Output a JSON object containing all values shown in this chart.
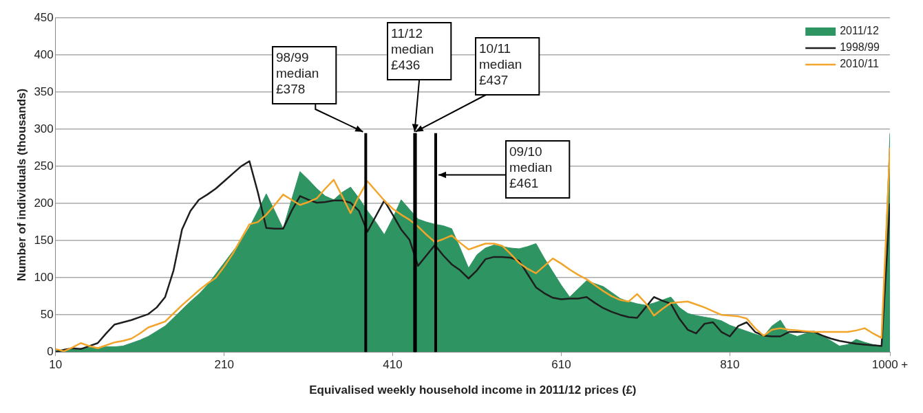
{
  "chart_data": {
    "type": "area",
    "xlabel": "Equivalised weekly household income in 2011/12 prices (£)",
    "ylabel": "Number of individuals (thousands)",
    "x": [
      10,
      20,
      30,
      40,
      50,
      60,
      70,
      80,
      90,
      100,
      110,
      120,
      130,
      140,
      150,
      160,
      170,
      180,
      190,
      200,
      210,
      220,
      230,
      240,
      250,
      260,
      270,
      280,
      290,
      300,
      310,
      320,
      330,
      340,
      350,
      360,
      370,
      380,
      390,
      400,
      410,
      420,
      430,
      440,
      450,
      460,
      470,
      480,
      490,
      500,
      510,
      520,
      530,
      540,
      550,
      560,
      570,
      580,
      590,
      600,
      610,
      620,
      630,
      640,
      650,
      660,
      670,
      680,
      690,
      700,
      710,
      720,
      730,
      740,
      750,
      760,
      770,
      780,
      790,
      800,
      810,
      820,
      830,
      840,
      850,
      860,
      870,
      880,
      890,
      900,
      910,
      920,
      930,
      940,
      950,
      960,
      970,
      980,
      990,
      1000
    ],
    "series": [
      {
        "name": "2011/12",
        "color": "#2e9462",
        "values": [
          2,
          3,
          4,
          5,
          6,
          6,
          7,
          7,
          8,
          12,
          16,
          21,
          28,
          35,
          46,
          57,
          68,
          78,
          90,
          105,
          120,
          135,
          150,
          168,
          190,
          213,
          190,
          166,
          205,
          243,
          232,
          220,
          210,
          205,
          215,
          222,
          207,
          190,
          175,
          158,
          180,
          205,
          192,
          179,
          175,
          172,
          170,
          166,
          140,
          113,
          131,
          140,
          144,
          142,
          140,
          139,
          142,
          146,
          126,
          108,
          90,
          74,
          85,
          96,
          92,
          88,
          80,
          72,
          68,
          65,
          63,
          66,
          70,
          74,
          60,
          52,
          49,
          47,
          45,
          42,
          36,
          32,
          28,
          24,
          21,
          35,
          43,
          25,
          21,
          25,
          28,
          22,
          15,
          8,
          10,
          17,
          13,
          10,
          8,
          295
        ]
      },
      {
        "name": "1998/99",
        "type": "line",
        "color": "#1e1e1e",
        "values": [
          0,
          3,
          5,
          4,
          8,
          12,
          25,
          37,
          40,
          43,
          47,
          51,
          60,
          74,
          110,
          165,
          190,
          205,
          212,
          220,
          230,
          240,
          250,
          257,
          215,
          167,
          166,
          166,
          190,
          210,
          205,
          201,
          202,
          204,
          204,
          201,
          190,
          162,
          183,
          204,
          185,
          165,
          151,
          116,
          130,
          144,
          130,
          118,
          110,
          99,
          110,
          125,
          128,
          128,
          127,
          123,
          105,
          87,
          79,
          73,
          71,
          72,
          72,
          74,
          66,
          59,
          54,
          50,
          47,
          46,
          60,
          74,
          69,
          65,
          45,
          30,
          25,
          38,
          40,
          27,
          21,
          35,
          40,
          27,
          22,
          21,
          21,
          27,
          27,
          27,
          27,
          22,
          18,
          15,
          13,
          11,
          10,
          9,
          8,
          200
        ]
      },
      {
        "name": "2010/11",
        "type": "line",
        "color": "#f2a52a",
        "values": [
          4,
          1,
          6,
          12,
          8,
          5,
          9,
          13,
          15,
          18,
          25,
          33,
          37,
          41,
          52,
          63,
          73,
          83,
          92,
          100,
          115,
          132,
          152,
          172,
          175,
          185,
          198,
          212,
          205,
          198,
          202,
          207,
          220,
          232,
          210,
          187,
          210,
          230,
          217,
          204,
          193,
          185,
          178,
          169,
          158,
          148,
          152,
          157,
          147,
          138,
          142,
          146,
          146,
          143,
          132,
          120,
          112,
          106,
          116,
          126,
          119,
          111,
          104,
          98,
          90,
          82,
          75,
          70,
          68,
          78,
          66,
          49,
          58,
          66,
          67,
          68,
          64,
          60,
          55,
          50,
          49,
          48,
          45,
          32,
          22,
          30,
          32,
          30,
          29,
          28,
          27,
          27,
          27,
          27,
          27,
          29,
          32,
          25,
          19,
          275
        ]
      }
    ],
    "xlim": [
      10,
      1000
    ],
    "xticks": [
      10,
      210,
      410,
      610,
      810,
      {
        "value": 1000,
        "label": "1000 +"
      }
    ],
    "ylim": [
      0,
      450
    ],
    "yticks": [
      0,
      50,
      100,
      150,
      200,
      250,
      300,
      350,
      400,
      450
    ],
    "ref_lines": [
      {
        "axis": "x",
        "value": 378,
        "label": "98/99 median £378",
        "color": "#000000"
      },
      {
        "axis": "x",
        "value": 436,
        "label": "11/12 median £436",
        "color": "#000000"
      },
      {
        "axis": "x",
        "value": 437,
        "label": "10/11 median £437",
        "color": "#000000"
      },
      {
        "axis": "x",
        "value": 461,
        "label": "09/10 median £461",
        "color": "#000000"
      }
    ],
    "grid": "y",
    "legend": "top right"
  }
}
